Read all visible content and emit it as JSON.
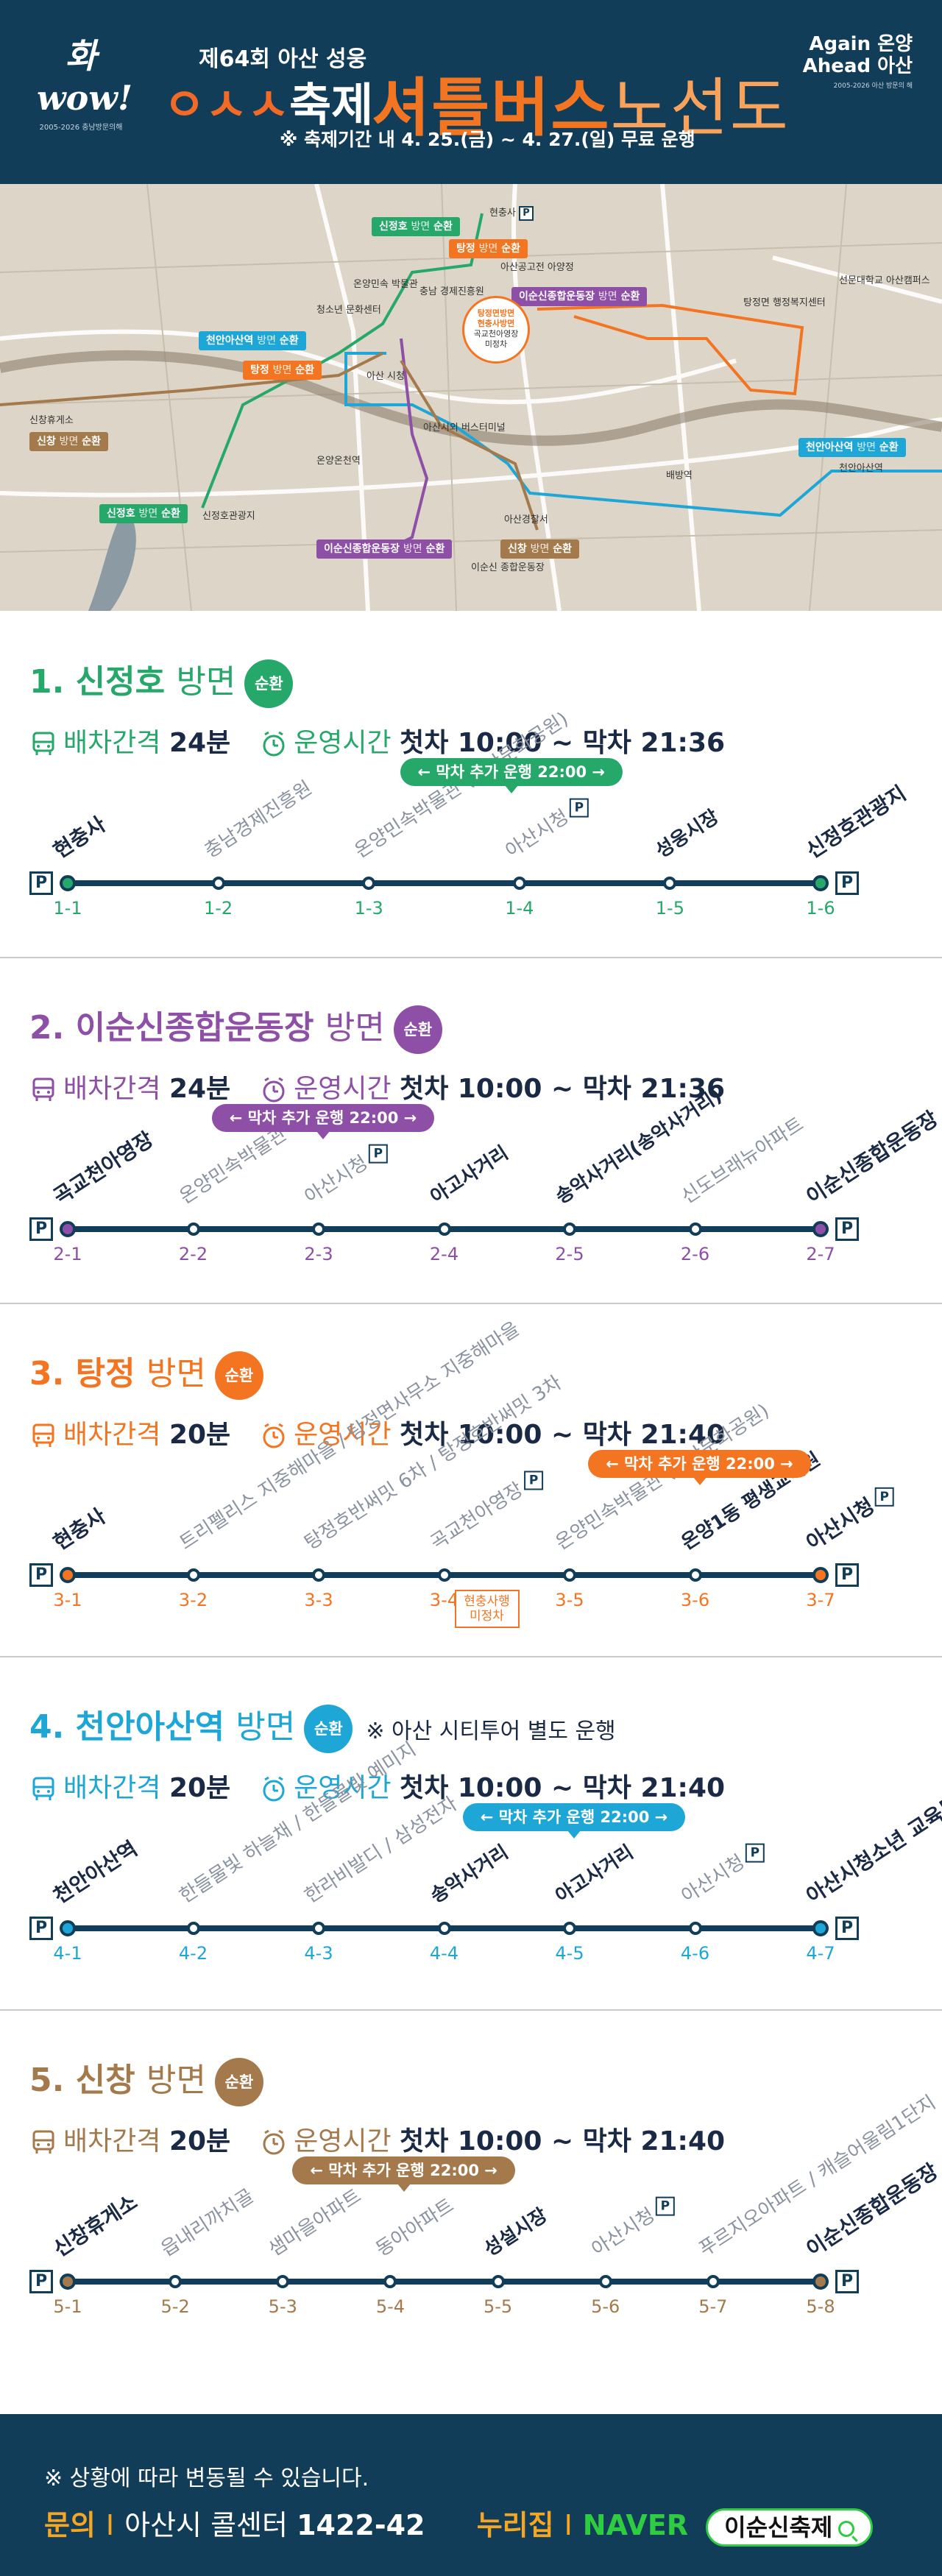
{
  "header": {
    "logo_left": "화wow!",
    "logo_left_sub": "2005-2026 충남방문의해",
    "festival_sub": "제64회 아산 성웅",
    "festival_name_dots": "ㅇㅅㅅ",
    "festival_name": "축제",
    "title_bold": "셔틀버스",
    "title_light": "노선도",
    "period": "※ 축제기간 내 4. 25.(금) ~ 4. 27.(일) 무료 운행",
    "logo_right_line1": "Again 온양",
    "logo_right_line2": "Ahead 아산",
    "logo_right_sub": "2005-2026 아산 방문의 해"
  },
  "map": {
    "tags": [
      {
        "name": "신정호",
        "dir": "방면",
        "suffix": "순환",
        "color": "#27a86b"
      },
      {
        "name": "탕정",
        "dir": "방면",
        "suffix": "순환",
        "color": "#f47521"
      },
      {
        "name": "이순신종합운동장",
        "dir": "방면",
        "suffix": "순환",
        "color": "#8e4fa6"
      },
      {
        "name": "천안아산역",
        "dir": "방면",
        "suffix": "순환",
        "color": "#1ea7d6"
      },
      {
        "name": "탕정",
        "dir": "방면",
        "suffix": "순환",
        "color": "#f47521"
      },
      {
        "name": "신창",
        "dir": "방면",
        "suffix": "순환",
        "color": "#a47a4d"
      },
      {
        "name": "천안아산역",
        "dir": "방면",
        "suffix": "순환",
        "color": "#1ea7d6"
      },
      {
        "name": "신정호",
        "dir": "방면",
        "suffix": "순환",
        "color": "#27a86b"
      },
      {
        "name": "이순신종합운동장",
        "dir": "방면",
        "suffix": "순환",
        "color": "#8e4fa6"
      },
      {
        "name": "신창",
        "dir": "방면",
        "suffix": "순환",
        "color": "#a47a4d"
      }
    ],
    "places": [
      "현충사",
      "아산공고전 아양정",
      "충남 경제진흥원",
      "청소년 문화센터",
      "온양민속 박물관",
      "아산 시청",
      "아산시외 버스터미널",
      "온양온천역",
      "신창휴게소",
      "신정호관광지",
      "탕정면 행정복지센터",
      "선문대학교 아산캠퍼스",
      "배방역",
      "천안아산역",
      "아산경찰서",
      "이순신 종합운동장"
    ],
    "center_circle_1": "탕정면방면",
    "center_circle_2": "현충사방면",
    "center_circle_3": "곡교천아영장",
    "center_circle_4": "미정차"
  },
  "routes": [
    {
      "number": "1.",
      "name": "신정호",
      "dir": "방면",
      "badge": "순환",
      "color": "#27a86b",
      "interval_label": "배차간격",
      "interval": "24분",
      "hours_label": "운영시간",
      "hours": "첫차 10:00 ~ 막차 21:36",
      "extra_run": "← 막차 추가 운행 22:00 →",
      "stops": [
        {
          "num": "1-1",
          "name": "현충사"
        },
        {
          "num": "1-2",
          "name": "충남경제진흥원"
        },
        {
          "num": "1-3",
          "name": "온양민속박물관 (아산문화공원)"
        },
        {
          "num": "1-4",
          "name": "아산시청"
        },
        {
          "num": "1-5",
          "name": "성웅시장"
        },
        {
          "num": "1-6",
          "name": "신정호관광지"
        }
      ]
    },
    {
      "number": "2.",
      "name": "이순신종합운동장",
      "dir": "방면",
      "badge": "순환",
      "color": "#8e4fa6",
      "interval_label": "배차간격",
      "interval": "24분",
      "hours_label": "운영시간",
      "hours": "첫차 10:00 ~ 막차 21:36",
      "extra_run": "← 막차 추가 운행 22:00 →",
      "stops": [
        {
          "num": "2-1",
          "name": "곡교천아영장"
        },
        {
          "num": "2-2",
          "name": "온양민속박물관"
        },
        {
          "num": "2-3",
          "name": "아산시청"
        },
        {
          "num": "2-4",
          "name": "아고사거리"
        },
        {
          "num": "2-5",
          "name": "송악사거리(송악사거리)"
        },
        {
          "num": "2-6",
          "name": "신도브래뉴아파트"
        },
        {
          "num": "2-7",
          "name": "이순신종합운동장"
        }
      ]
    },
    {
      "number": "3.",
      "name": "탕정",
      "dir": "방면",
      "badge": "순환",
      "color": "#f47521",
      "interval_label": "배차간격",
      "interval": "20분",
      "hours_label": "운영시간",
      "hours": "첫차 10:00 ~ 막차 21:40",
      "extra_run": "← 막차 추가 운행 22:00 →",
      "not_stop": "현충사행 미정차",
      "stops": [
        {
          "num": "3-1",
          "name": "현충사"
        },
        {
          "num": "3-2",
          "name": "트리펠리스 지중해마을 / 탕정면사무소 지중해마을"
        },
        {
          "num": "3-3",
          "name": "탕정호반써밋 6차 / 탕정호반써밋 3차"
        },
        {
          "num": "3-4",
          "name": "곡교천아영장"
        },
        {
          "num": "3-5",
          "name": "온양민속박물관 (아산문화공원)"
        },
        {
          "num": "3-6",
          "name": "온양1동 평생교육원"
        },
        {
          "num": "3-7",
          "name": "아산시청"
        }
      ]
    },
    {
      "number": "4.",
      "name": "천안아산역",
      "dir": "방면",
      "badge": "순환",
      "color": "#1ea7d6",
      "note": "※ 아산 시티투어 별도 운행",
      "interval_label": "배차간격",
      "interval": "20분",
      "hours_label": "운영시간",
      "hours": "첫차 10:00 ~ 막차 21:40",
      "extra_run": "← 막차 추가 운행 22:00 →",
      "stops": [
        {
          "num": "4-1",
          "name": "천안아산역"
        },
        {
          "num": "4-2",
          "name": "한들물빛 하늘채 / 한들물빛 예미지"
        },
        {
          "num": "4-3",
          "name": "한라비발디 / 삼성전자"
        },
        {
          "num": "4-4",
          "name": "송악사거리"
        },
        {
          "num": "4-5",
          "name": "아고사거리"
        },
        {
          "num": "4-6",
          "name": "아산시청"
        },
        {
          "num": "4-7",
          "name": "아산시청소년 교육문화센터"
        }
      ]
    },
    {
      "number": "5.",
      "name": "신창",
      "dir": "방면",
      "badge": "순환",
      "color": "#a47a4d",
      "interval_label": "배차간격",
      "interval": "20분",
      "hours_label": "운영시간",
      "hours": "첫차 10:00 ~ 막차 21:40",
      "extra_run": "← 막차 추가 운행 22:00 →",
      "stops": [
        {
          "num": "5-1",
          "name": "신창휴게소"
        },
        {
          "num": "5-2",
          "name": "읍내리까치골"
        },
        {
          "num": "5-3",
          "name": "샘마을아파트"
        },
        {
          "num": "5-4",
          "name": "동아아파트"
        },
        {
          "num": "5-5",
          "name": "성설시장"
        },
        {
          "num": "5-6",
          "name": "아산시청"
        },
        {
          "num": "5-7",
          "name": "푸르지오아파트 / 캐슬어울림1단지"
        },
        {
          "num": "5-8",
          "name": "이순신종합운동장"
        }
      ]
    }
  ],
  "footer": {
    "note": "※ 상황에 따라 변동될 수 있습니다.",
    "contact_label": "문의",
    "contact_text": "아산시 콜센터",
    "contact_num": "1422-42",
    "web_label": "누리집",
    "naver": "NAVER",
    "search_text": "이순신축제"
  }
}
